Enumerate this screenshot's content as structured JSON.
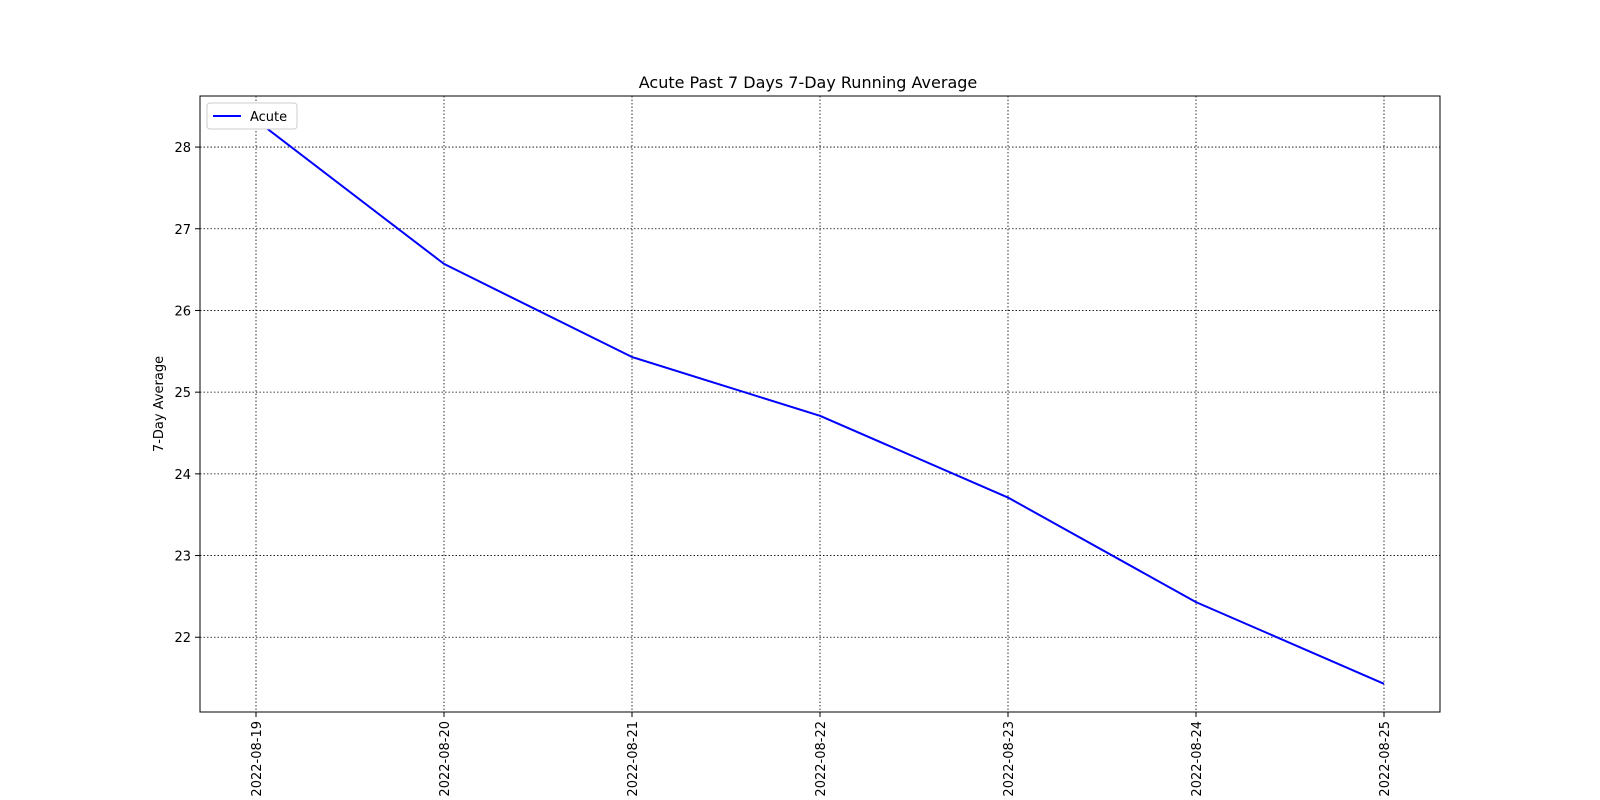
{
  "chart_data": {
    "type": "line",
    "title": "Acute Past 7 Days 7-Day Running Average",
    "xlabel": "",
    "ylabel": "7-Day Average",
    "categories": [
      "2022-08-19",
      "2022-08-20",
      "2022-08-21",
      "2022-08-22",
      "2022-08-23",
      "2022-08-24",
      "2022-08-25"
    ],
    "series": [
      {
        "name": "Acute",
        "color": "#0000ff",
        "values": [
          28.33,
          26.57,
          25.43,
          24.71,
          23.71,
          22.43,
          21.43
        ]
      }
    ],
    "yticks": [
      22,
      23,
      24,
      25,
      26,
      27,
      28
    ],
    "ylim": [
      21.085,
      28.625
    ],
    "grid": true,
    "legend": "upper-left"
  }
}
